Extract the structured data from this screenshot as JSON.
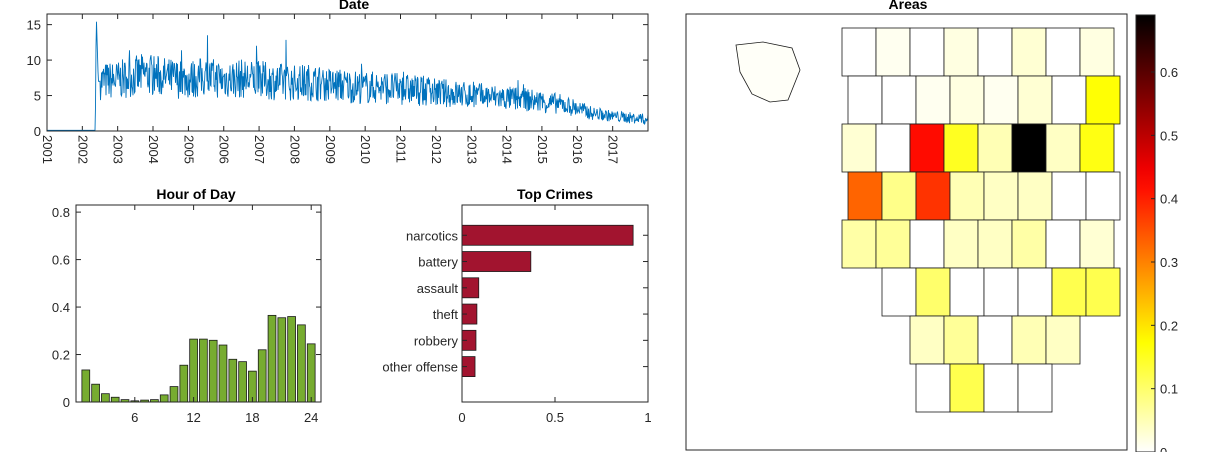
{
  "chart_data": [
    {
      "type": "line",
      "title": "Date",
      "xlabel": "",
      "ylabel": "",
      "x_tick_labels": [
        "2001",
        "2002",
        "2003",
        "2004",
        "2005",
        "2006",
        "2007",
        "2008",
        "2009",
        "2010",
        "2011",
        "2012",
        "2013",
        "2014",
        "2015",
        "2016",
        "2017"
      ],
      "xlim": [
        "2001-01-01",
        "2018-01-01"
      ],
      "ylim": [
        0,
        16.5
      ],
      "y_ticks": [
        0,
        5,
        10,
        15
      ],
      "grid": false,
      "color": "#0072bd",
      "series": [
        {
          "x": [
            "2001-01-01",
            "2002-05-15",
            "2002-05-25",
            "2002-06-15",
            "2003-01-01",
            "2003-06-01",
            "2003-10-01",
            "2004-01-01",
            "2004-06-01",
            "2005-01-01",
            "2005-06-01",
            "2006-01-01",
            "2006-06-01",
            "2007-01-01",
            "2007-06-01",
            "2008-01-01",
            "2008-06-01",
            "2009-01-01",
            "2009-06-01",
            "2010-01-01",
            "2010-06-01",
            "2011-01-01",
            "2011-06-01",
            "2012-01-01",
            "2012-06-01",
            "2013-01-01",
            "2013-06-01",
            "2014-01-01",
            "2014-06-01",
            "2015-01-01",
            "2015-06-01",
            "2016-01-01",
            "2016-06-01",
            "2017-01-01",
            "2017-06-01",
            "2017-12-31"
          ],
          "y": [
            0.1,
            0.1,
            16.5,
            7.0,
            7.2,
            7.6,
            8.0,
            7.9,
            7.5,
            7.2,
            7.6,
            7.3,
            7.4,
            7.2,
            7.0,
            6.8,
            6.9,
            6.5,
            6.4,
            6.1,
            6.2,
            5.9,
            5.8,
            5.4,
            5.3,
            5.0,
            4.9,
            4.6,
            4.5,
            4.1,
            3.9,
            3.2,
            2.5,
            2.1,
            1.9,
            1.6
          ]
        }
      ]
    },
    {
      "type": "bar",
      "title": "Hour of Day",
      "xlabel": "",
      "ylabel": "",
      "categories": [
        1,
        2,
        3,
        4,
        5,
        6,
        7,
        8,
        9,
        10,
        11,
        12,
        13,
        14,
        15,
        16,
        17,
        18,
        19,
        20,
        21,
        22,
        23,
        24
      ],
      "x_ticks": [
        6,
        12,
        18,
        24
      ],
      "xlim": [
        0,
        25
      ],
      "ylim": [
        0,
        0.83
      ],
      "y_ticks": [
        0,
        0.2,
        0.4,
        0.6,
        0.8
      ],
      "y_tick_labels": [
        "0",
        "0.2",
        "0.4",
        "0.6",
        "0.8"
      ],
      "color": "#77ac30",
      "values": [
        0.135,
        0.075,
        0.035,
        0.02,
        0.01,
        0.005,
        0.008,
        0.01,
        0.03,
        0.065,
        0.155,
        0.265,
        0.265,
        0.26,
        0.24,
        0.18,
        0.17,
        0.13,
        0.22,
        0.365,
        0.355,
        0.36,
        0.325,
        0.245
      ]
    },
    {
      "type": "bar",
      "orientation": "horizontal",
      "title": "Top Crimes",
      "xlabel": "",
      "ylabel": "",
      "categories": [
        "narcotics",
        "battery",
        "assault",
        "theft",
        "robbery",
        "other offense"
      ],
      "values": [
        0.92,
        0.37,
        0.09,
        0.08,
        0.075,
        0.07
      ],
      "xlim": [
        0,
        1
      ],
      "x_ticks": [
        0,
        0.5,
        1
      ],
      "x_tick_labels": [
        "0",
        "0.5",
        "1"
      ],
      "color": "#a2142f"
    },
    {
      "type": "heatmap",
      "title": "Areas",
      "colormap": "hot (reversed)",
      "colorbar_ticks": [
        0,
        0.1,
        0.2,
        0.3,
        0.4,
        0.5,
        0.6
      ],
      "colorbar_tick_labels": [
        "0",
        "0.1",
        "0.2",
        "0.3",
        "0.4",
        "0.5",
        "0.6"
      ],
      "clim": [
        0,
        0.69
      ],
      "regions": [
        {
          "value": 0.0
        },
        {
          "value": 0.01
        },
        {
          "value": 0.0
        },
        {
          "value": 0.02
        },
        {
          "value": 0.0
        },
        {
          "value": 0.03
        },
        {
          "value": 0.0
        },
        {
          "value": 0.02
        },
        {
          "value": 0.0
        },
        {
          "value": 0.0
        },
        {
          "value": 0.01
        },
        {
          "value": 0.02
        },
        {
          "value": 0.01
        },
        {
          "value": 0.03
        },
        {
          "value": 0.0
        },
        {
          "value": 0.17
        },
        {
          "value": 0.03
        },
        {
          "value": 0.0
        },
        {
          "value": 0.42
        },
        {
          "value": 0.15
        },
        {
          "value": 0.05
        },
        {
          "value": 0.69
        },
        {
          "value": 0.04
        },
        {
          "value": 0.16
        },
        {
          "value": 0.33
        },
        {
          "value": 0.08
        },
        {
          "value": 0.38
        },
        {
          "value": 0.05
        },
        {
          "value": 0.04
        },
        {
          "value": 0.04
        },
        {
          "value": 0.0
        },
        {
          "value": 0.0
        },
        {
          "value": 0.06
        },
        {
          "value": 0.07
        },
        {
          "value": 0.0
        },
        {
          "value": 0.04
        },
        {
          "value": 0.04
        },
        {
          "value": 0.06
        },
        {
          "value": 0.0
        },
        {
          "value": 0.03
        },
        {
          "value": 0.0
        },
        {
          "value": 0.1
        },
        {
          "value": 0.0
        },
        {
          "value": 0.0
        },
        {
          "value": 0.0
        },
        {
          "value": 0.12
        },
        {
          "value": 0.12
        },
        {
          "value": 0.04
        },
        {
          "value": 0.07
        },
        {
          "value": 0.0
        },
        {
          "value": 0.05
        },
        {
          "value": 0.04
        },
        {
          "value": 0.0
        },
        {
          "value": 0.12
        },
        {
          "value": 0.0
        },
        {
          "value": 0.0
        },
        {
          "value": 0.02
        },
        {
          "value": 0.12
        },
        {
          "value": 0.05
        },
        {
          "value": 0.0
        },
        {
          "value": 0.0
        },
        {
          "value": 0.1
        },
        {
          "value": 0.08
        },
        {
          "value": 0.0
        }
      ]
    }
  ]
}
